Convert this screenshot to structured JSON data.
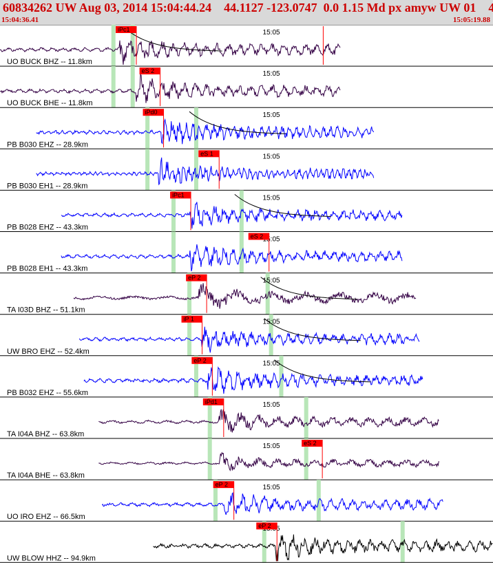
{
  "header": {
    "title": "60834262 UW Aug 03, 2014 15:04:44.24    44.1127 -123.0747  0.0 1.15 Md px amyw UW 01    4",
    "start_time": "15:04:36.41",
    "end_time": "15:05:19.88"
  },
  "colors": {
    "header_bg": "#d9d9d9",
    "header_text": "#cc0000",
    "pick_box": "#ff0000",
    "pick_line": "#ff0000",
    "arrival_band": "#b8e6b8",
    "trace_blue": "#0000ff",
    "trace_purple": "#330044",
    "trace_black": "#000000",
    "coda_curve": "#000000"
  },
  "chart_data": {
    "type": "line",
    "x_unit": "seconds after 15:04:36.41",
    "xlim": [
      0,
      43.47
    ],
    "time_tick": {
      "label": "15:05",
      "t": 23.59
    },
    "traces": [
      {
        "label": "UO BUCK BHZ -- 11.8km",
        "color": "#330044",
        "t_start": 0,
        "t_end": 30.0,
        "onset": 10.5,
        "amp": 0.85,
        "freq": 2.5,
        "pick": {
          "label": "iPc1",
          "t": 10.2
        },
        "bands": [
          10.0,
          11.7
        ],
        "coda": true,
        "extra_pick": 28.5
      },
      {
        "label": "UO BUCK BHE -- 11.8km",
        "color": "#330044",
        "t_start": 0,
        "t_end": 30.0,
        "onset": 12.0,
        "amp": 0.85,
        "freq": 2.5,
        "pick": {
          "label": "eS 2",
          "t": 12.3
        },
        "bands": [
          10.0,
          11.7
        ],
        "coda": false
      },
      {
        "label": "PB B030 EHZ -- 28.9km",
        "color": "#0000ff",
        "t_start": 3.2,
        "t_end": 33.0,
        "onset": 14.2,
        "amp": 0.9,
        "freq": 4,
        "pick": {
          "label": "iPd0",
          "t": 12.6
        },
        "bands": [
          13.0,
          17.3
        ],
        "coda": true
      },
      {
        "label": "PB B030 EH1 -- 28.9km",
        "color": "#0000ff",
        "t_start": 3.2,
        "t_end": 33.0,
        "onset": 14.0,
        "amp": 0.8,
        "freq": 5,
        "pick": {
          "label": "eS 1",
          "t": 17.5
        },
        "bands": [
          13.0,
          17.3
        ],
        "coda": false
      },
      {
        "label": "PB B028 EHZ -- 43.3km",
        "color": "#0000ff",
        "t_start": 5.4,
        "t_end": 35.5,
        "onset": 16.7,
        "amp": 0.8,
        "freq": 3,
        "pick": {
          "label": "iPc1",
          "t": 15.0
        },
        "bands": [
          15.3,
          21.3
        ],
        "coda": true
      },
      {
        "label": "PB B028 EH1 -- 43.3km",
        "color": "#0000ff",
        "t_start": 5.4,
        "t_end": 35.5,
        "onset": 16.7,
        "amp": 0.8,
        "freq": 3,
        "pick": {
          "label": "eS 2",
          "t": 21.9
        },
        "bands": [
          15.3,
          21.3
        ],
        "coda": false
      },
      {
        "label": "TA I03D BHZ -- 51.1km",
        "color": "#330044",
        "t_start": 6.5,
        "t_end": 36.7,
        "onset": 17.5,
        "amp": 0.8,
        "freq": 0.8,
        "pick": {
          "label": "eP 2",
          "t": 16.4
        },
        "bands": [
          16.7,
          23.6
        ],
        "coda": true
      },
      {
        "label": "UW BRO EHZ -- 52.4km",
        "color": "#0000ff",
        "t_start": 7.0,
        "t_end": 37.0,
        "onset": 17.8,
        "amp": 0.8,
        "freq": 3,
        "pick": {
          "label": "iP 1",
          "t": 16.0
        },
        "bands": [
          16.7,
          23.9
        ],
        "coda": true
      },
      {
        "label": "PB B032 EHZ -- 55.6km",
        "color": "#0000ff",
        "t_start": 7.4,
        "t_end": 37.3,
        "onset": 18.3,
        "amp": 0.9,
        "freq": 3,
        "pick": {
          "label": "eP 2",
          "t": 16.9
        },
        "bands": [
          17.3,
          24.8
        ],
        "coda": true
      },
      {
        "label": "TA I04A BHZ -- 63.8km",
        "color": "#330044",
        "t_start": 8.7,
        "t_end": 38.7,
        "onset": 19.3,
        "amp": 0.7,
        "freq": 1.5,
        "pick": {
          "label": "iPd1",
          "t": 17.9
        },
        "bands": [
          18.5,
          27.0
        ],
        "coda": false
      },
      {
        "label": "TA I04A BHE -- 63.8km",
        "color": "#330044",
        "t_start": 8.7,
        "t_end": 38.7,
        "onset": 19.3,
        "amp": 0.55,
        "freq": 1.5,
        "pick": {
          "label": "eS 2",
          "t": 26.6
        },
        "bands": [
          18.5,
          27.0
        ],
        "coda": false
      },
      {
        "label": "UO IRO EHZ -- 66.5km",
        "color": "#0000ff",
        "t_start": 9.0,
        "t_end": 39.1,
        "onset": 19.8,
        "amp": 0.8,
        "freq": 2.5,
        "pick": {
          "label": "eP 2",
          "t": 18.8
        },
        "bands": [
          19.0,
          28.1
        ],
        "coda": false
      },
      {
        "label": "UW BLOW HHZ -- 94.9km",
        "color": "#000000",
        "t_start": 13.5,
        "t_end": 43.47,
        "onset": 24.3,
        "amp": 0.9,
        "freq": 2.5,
        "pick": {
          "label": "eP 2",
          "t": 22.6
        },
        "bands": [
          23.3,
          35.5
        ],
        "coda": false
      }
    ]
  }
}
